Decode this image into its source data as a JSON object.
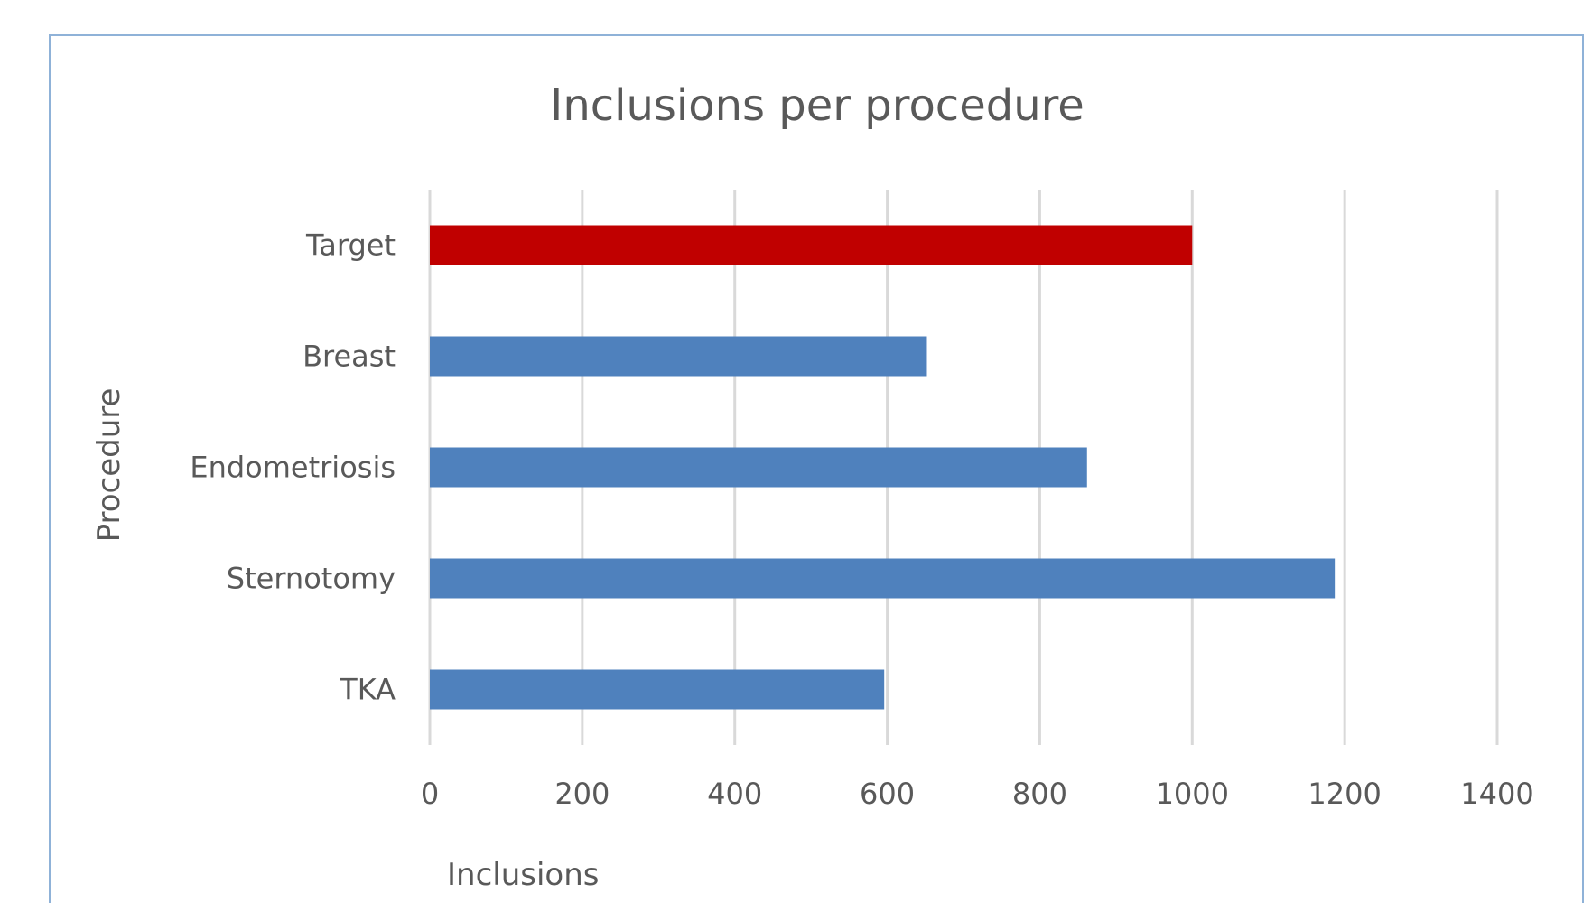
{
  "chart_data": {
    "type": "bar",
    "orientation": "horizontal",
    "title": "Inclusions per procedure",
    "xlabel": "Inclusions",
    "ylabel": "Procedure",
    "categories": [
      "Target",
      "Breast",
      "Endometriosis",
      "Sternotomy",
      "TKA"
    ],
    "values": [
      1000,
      652,
      862,
      1187,
      596
    ],
    "bar_colors": [
      "#c00000",
      "#4f81bd",
      "#4f81bd",
      "#4f81bd",
      "#4f81bd"
    ],
    "xlim": [
      0,
      1400
    ],
    "xticks": [
      "0",
      "200",
      "400",
      "600",
      "800",
      "1000",
      "1200",
      "1400"
    ],
    "grid": true,
    "legend": "none"
  }
}
